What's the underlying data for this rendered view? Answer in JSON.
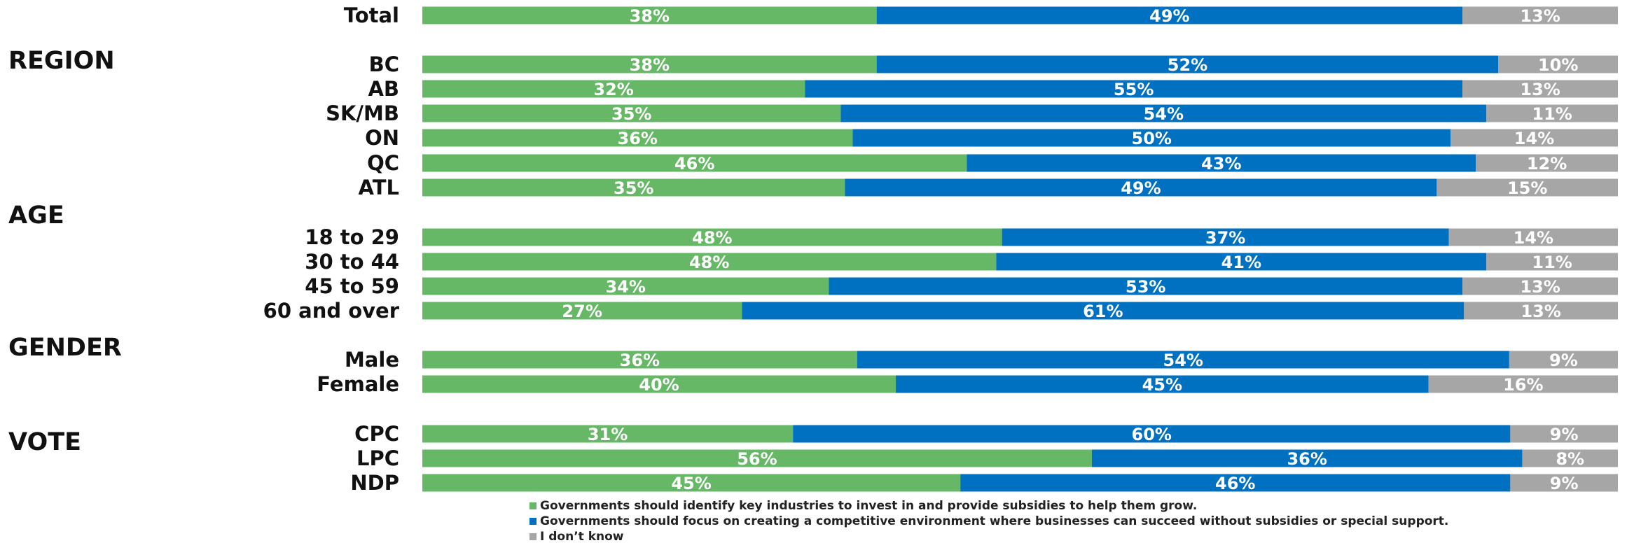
{
  "chart_data": {
    "type": "bar",
    "orientation": "horizontal",
    "stacked": true,
    "normalized_to": 100,
    "categories": [
      "Total",
      "BC",
      "AB",
      "SK/MB",
      "ON",
      "QC",
      "ATL",
      "18 to 29",
      "30 to 44",
      "45 to 59",
      "60 and over",
      "Male",
      "Female",
      "CPC",
      "LPC",
      "NDP"
    ],
    "groups": [
      {
        "label": "",
        "rows": [
          "Total"
        ]
      },
      {
        "label": "REGION",
        "rows": [
          "BC",
          "AB",
          "SK/MB",
          "ON",
          "QC",
          "ATL"
        ]
      },
      {
        "label": "AGE",
        "rows": [
          "18 to 29",
          "30 to 44",
          "45 to 59",
          "60 and over"
        ]
      },
      {
        "label": "GENDER",
        "rows": [
          "Male",
          "Female"
        ]
      },
      {
        "label": "VOTE",
        "rows": [
          "CPC",
          "LPC",
          "NDP"
        ]
      }
    ],
    "series": [
      {
        "name": "Governments should identify key industries to invest in and provide subsidies to help them grow.",
        "color": "#66b866",
        "values": [
          38,
          38,
          32,
          35,
          36,
          46,
          35,
          48,
          48,
          34,
          27,
          36,
          40,
          31,
          56,
          45
        ]
      },
      {
        "name": "Governments should focus on creating a competitive environment where businesses can succeed without subsidies or special support.",
        "color": "#0070c0",
        "values": [
          49,
          52,
          55,
          54,
          50,
          43,
          49,
          37,
          41,
          53,
          61,
          54,
          45,
          60,
          36,
          46
        ]
      },
      {
        "name": "I don’t know",
        "color": "#a6a6a6",
        "values": [
          13,
          10,
          13,
          11,
          14,
          12,
          15,
          14,
          11,
          13,
          13,
          9,
          16,
          9,
          8,
          9
        ]
      }
    ],
    "value_suffix": "%",
    "legend_position": "bottom",
    "grid": false,
    "title": "",
    "xlabel": "",
    "ylabel": ""
  }
}
